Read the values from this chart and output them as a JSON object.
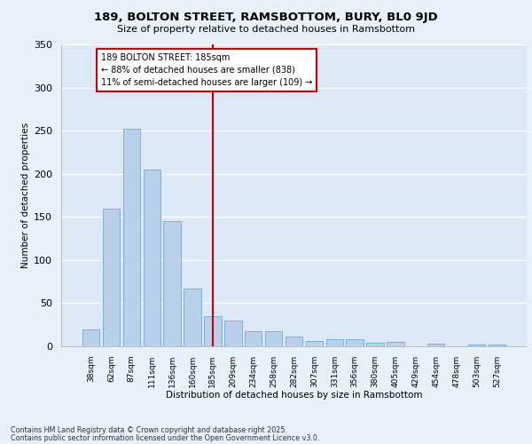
{
  "title1": "189, BOLTON STREET, RAMSBOTTOM, BURY, BL0 9JD",
  "title2": "Size of property relative to detached houses in Ramsbottom",
  "xlabel": "Distribution of detached houses by size in Ramsbottom",
  "ylabel": "Number of detached properties",
  "categories": [
    "38sqm",
    "62sqm",
    "87sqm",
    "111sqm",
    "136sqm",
    "160sqm",
    "185sqm",
    "209sqm",
    "234sqm",
    "258sqm",
    "282sqm",
    "307sqm",
    "331sqm",
    "356sqm",
    "380sqm",
    "405sqm",
    "429sqm",
    "454sqm",
    "478sqm",
    "503sqm",
    "527sqm"
  ],
  "values": [
    20,
    160,
    252,
    205,
    145,
    67,
    35,
    30,
    17,
    17,
    11,
    6,
    8,
    8,
    4,
    5,
    0,
    3,
    0,
    2,
    2
  ],
  "bar_color": "#b8d0ea",
  "bar_edge_color": "#6aaad4",
  "vline_x_index": 6,
  "vline_color": "#cc0000",
  "annotation_box_text": "189 BOLTON STREET: 185sqm\n← 88% of detached houses are smaller (838)\n11% of semi-detached houses are larger (109) →",
  "annotation_box_color": "#cc0000",
  "annotation_text_color": "#000000",
  "bg_color": "#dce8f5",
  "fig_bg_color": "#e8f0f8",
  "grid_color": "#ffffff",
  "ylim": [
    0,
    350
  ],
  "yticks": [
    0,
    50,
    100,
    150,
    200,
    250,
    300,
    350
  ],
  "footer1": "Contains HM Land Registry data © Crown copyright and database right 2025.",
  "footer2": "Contains public sector information licensed under the Open Government Licence v3.0."
}
